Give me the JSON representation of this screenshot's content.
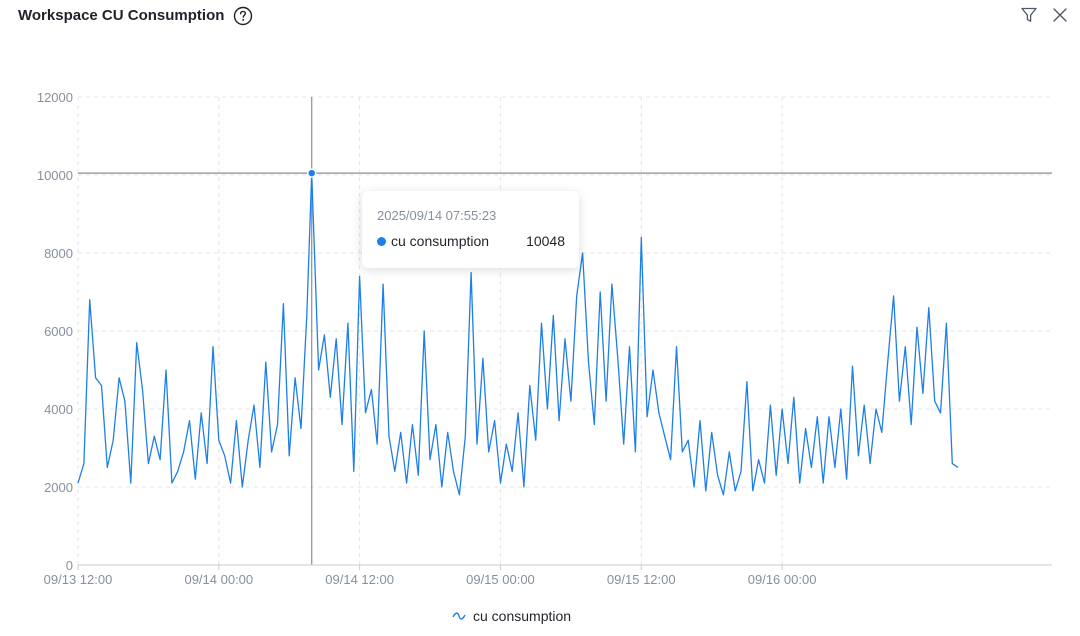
{
  "header": {
    "title": "Workspace CU Consumption",
    "help_icon": "help-circle-icon",
    "filter_icon": "filter-icon",
    "close_icon": "close-icon"
  },
  "tooltip": {
    "time": "2025/09/14 07:55:23",
    "series_name": "cu consumption",
    "value": "10048"
  },
  "legend": {
    "label": "cu consumption",
    "icon": "line-icon"
  },
  "colors": {
    "series": "#1e7fe8",
    "axis_text": "#86909c",
    "grid": "#e3e5e8",
    "crosshair": "#8a8f96"
  },
  "chart_data": {
    "type": "line",
    "title": "Workspace CU Consumption",
    "xlabel": "",
    "ylabel": "",
    "ylim": [
      0,
      12000
    ],
    "yticks": [
      "0",
      "2000",
      "4000",
      "6000",
      "8000",
      "10000",
      "12000"
    ],
    "xticks": [
      "09/13 12:00",
      "09/14 00:00",
      "09/14 12:00",
      "09/15 00:00",
      "09/15 12:00",
      "09/16 00:00"
    ],
    "grid": true,
    "legend_position": "bottom-center",
    "x_start": "2025-09-13 12:00",
    "x_end": "2025-09-16 23:00",
    "highlight": {
      "x": "2025-09-14 07:55",
      "y": 10048
    },
    "series": [
      {
        "name": "cu consumption",
        "points": [
          {
            "x": "2025-09-13 12:00",
            "y": 2100
          },
          {
            "x": "2025-09-13 12:30",
            "y": 2600
          },
          {
            "x": "2025-09-13 13:00",
            "y": 6800
          },
          {
            "x": "2025-09-13 13:30",
            "y": 4800
          },
          {
            "x": "2025-09-13 14:00",
            "y": 4600
          },
          {
            "x": "2025-09-13 14:30",
            "y": 2500
          },
          {
            "x": "2025-09-13 15:00",
            "y": 3200
          },
          {
            "x": "2025-09-13 15:30",
            "y": 4800
          },
          {
            "x": "2025-09-13 16:00",
            "y": 4200
          },
          {
            "x": "2025-09-13 16:30",
            "y": 2100
          },
          {
            "x": "2025-09-13 17:00",
            "y": 5700
          },
          {
            "x": "2025-09-13 17:30",
            "y": 4500
          },
          {
            "x": "2025-09-13 18:00",
            "y": 2600
          },
          {
            "x": "2025-09-13 18:30",
            "y": 3300
          },
          {
            "x": "2025-09-13 19:00",
            "y": 2700
          },
          {
            "x": "2025-09-13 19:30",
            "y": 5000
          },
          {
            "x": "2025-09-13 20:00",
            "y": 2100
          },
          {
            "x": "2025-09-13 20:30",
            "y": 2400
          },
          {
            "x": "2025-09-13 21:00",
            "y": 2900
          },
          {
            "x": "2025-09-13 21:30",
            "y": 3700
          },
          {
            "x": "2025-09-13 22:00",
            "y": 2200
          },
          {
            "x": "2025-09-13 22:30",
            "y": 3900
          },
          {
            "x": "2025-09-13 23:00",
            "y": 2600
          },
          {
            "x": "2025-09-13 23:30",
            "y": 5600
          },
          {
            "x": "2025-09-14 00:00",
            "y": 3200
          },
          {
            "x": "2025-09-14 00:30",
            "y": 2800
          },
          {
            "x": "2025-09-14 01:00",
            "y": 2100
          },
          {
            "x": "2025-09-14 01:30",
            "y": 3700
          },
          {
            "x": "2025-09-14 02:00",
            "y": 2000
          },
          {
            "x": "2025-09-14 02:30",
            "y": 3200
          },
          {
            "x": "2025-09-14 03:00",
            "y": 4100
          },
          {
            "x": "2025-09-14 03:30",
            "y": 2500
          },
          {
            "x": "2025-09-14 04:00",
            "y": 5200
          },
          {
            "x": "2025-09-14 04:30",
            "y": 2900
          },
          {
            "x": "2025-09-14 05:00",
            "y": 3600
          },
          {
            "x": "2025-09-14 05:30",
            "y": 6700
          },
          {
            "x": "2025-09-14 06:00",
            "y": 2800
          },
          {
            "x": "2025-09-14 06:30",
            "y": 4800
          },
          {
            "x": "2025-09-14 07:00",
            "y": 3500
          },
          {
            "x": "2025-09-14 07:30",
            "y": 6400
          },
          {
            "x": "2025-09-14 07:55",
            "y": 10048
          },
          {
            "x": "2025-09-14 08:30",
            "y": 5000
          },
          {
            "x": "2025-09-14 09:00",
            "y": 5900
          },
          {
            "x": "2025-09-14 09:30",
            "y": 4300
          },
          {
            "x": "2025-09-14 10:00",
            "y": 5800
          },
          {
            "x": "2025-09-14 10:30",
            "y": 3600
          },
          {
            "x": "2025-09-14 11:00",
            "y": 6200
          },
          {
            "x": "2025-09-14 11:30",
            "y": 2400
          },
          {
            "x": "2025-09-14 12:00",
            "y": 7400
          },
          {
            "x": "2025-09-14 12:30",
            "y": 3900
          },
          {
            "x": "2025-09-14 13:00",
            "y": 4500
          },
          {
            "x": "2025-09-14 13:30",
            "y": 3100
          },
          {
            "x": "2025-09-14 14:00",
            "y": 7200
          },
          {
            "x": "2025-09-14 14:30",
            "y": 3300
          },
          {
            "x": "2025-09-14 15:00",
            "y": 2400
          },
          {
            "x": "2025-09-14 15:30",
            "y": 3400
          },
          {
            "x": "2025-09-14 16:00",
            "y": 2100
          },
          {
            "x": "2025-09-14 16:30",
            "y": 3600
          },
          {
            "x": "2025-09-14 17:00",
            "y": 2300
          },
          {
            "x": "2025-09-14 17:30",
            "y": 6000
          },
          {
            "x": "2025-09-14 18:00",
            "y": 2700
          },
          {
            "x": "2025-09-14 18:30",
            "y": 3600
          },
          {
            "x": "2025-09-14 19:00",
            "y": 2000
          },
          {
            "x": "2025-09-14 19:30",
            "y": 3400
          },
          {
            "x": "2025-09-14 20:00",
            "y": 2400
          },
          {
            "x": "2025-09-14 20:30",
            "y": 1800
          },
          {
            "x": "2025-09-14 21:00",
            "y": 3300
          },
          {
            "x": "2025-09-14 21:30",
            "y": 7500
          },
          {
            "x": "2025-09-14 22:00",
            "y": 3100
          },
          {
            "x": "2025-09-14 22:30",
            "y": 5300
          },
          {
            "x": "2025-09-14 23:00",
            "y": 2900
          },
          {
            "x": "2025-09-14 23:30",
            "y": 3700
          },
          {
            "x": "2025-09-15 00:00",
            "y": 2100
          },
          {
            "x": "2025-09-15 00:30",
            "y": 3100
          },
          {
            "x": "2025-09-15 01:00",
            "y": 2400
          },
          {
            "x": "2025-09-15 01:30",
            "y": 3900
          },
          {
            "x": "2025-09-15 02:00",
            "y": 2000
          },
          {
            "x": "2025-09-15 02:30",
            "y": 4600
          },
          {
            "x": "2025-09-15 03:00",
            "y": 3200
          },
          {
            "x": "2025-09-15 03:30",
            "y": 6200
          },
          {
            "x": "2025-09-15 04:00",
            "y": 4000
          },
          {
            "x": "2025-09-15 04:30",
            "y": 6400
          },
          {
            "x": "2025-09-15 05:00",
            "y": 3700
          },
          {
            "x": "2025-09-15 05:30",
            "y": 5800
          },
          {
            "x": "2025-09-15 06:00",
            "y": 4200
          },
          {
            "x": "2025-09-15 06:30",
            "y": 6900
          },
          {
            "x": "2025-09-15 07:00",
            "y": 8000
          },
          {
            "x": "2025-09-15 07:30",
            "y": 5200
          },
          {
            "x": "2025-09-15 08:00",
            "y": 3600
          },
          {
            "x": "2025-09-15 08:30",
            "y": 7000
          },
          {
            "x": "2025-09-15 09:00",
            "y": 4200
          },
          {
            "x": "2025-09-15 09:30",
            "y": 7200
          },
          {
            "x": "2025-09-15 10:00",
            "y": 5300
          },
          {
            "x": "2025-09-15 10:30",
            "y": 3100
          },
          {
            "x": "2025-09-15 11:00",
            "y": 5600
          },
          {
            "x": "2025-09-15 11:30",
            "y": 2900
          },
          {
            "x": "2025-09-15 12:00",
            "y": 8400
          },
          {
            "x": "2025-09-15 12:30",
            "y": 3800
          },
          {
            "x": "2025-09-15 13:00",
            "y": 5000
          },
          {
            "x": "2025-09-15 13:30",
            "y": 3900
          },
          {
            "x": "2025-09-15 14:00",
            "y": 3300
          },
          {
            "x": "2025-09-15 14:30",
            "y": 2700
          },
          {
            "x": "2025-09-15 15:00",
            "y": 5600
          },
          {
            "x": "2025-09-15 15:30",
            "y": 2900
          },
          {
            "x": "2025-09-15 16:00",
            "y": 3200
          },
          {
            "x": "2025-09-15 16:30",
            "y": 2000
          },
          {
            "x": "2025-09-15 17:00",
            "y": 3700
          },
          {
            "x": "2025-09-15 17:30",
            "y": 1900
          },
          {
            "x": "2025-09-15 18:00",
            "y": 3400
          },
          {
            "x": "2025-09-15 18:30",
            "y": 2300
          },
          {
            "x": "2025-09-15 19:00",
            "y": 1800
          },
          {
            "x": "2025-09-15 19:30",
            "y": 2900
          },
          {
            "x": "2025-09-15 20:00",
            "y": 1900
          },
          {
            "x": "2025-09-15 20:30",
            "y": 2400
          },
          {
            "x": "2025-09-15 21:00",
            "y": 4700
          },
          {
            "x": "2025-09-15 21:30",
            "y": 1900
          },
          {
            "x": "2025-09-15 22:00",
            "y": 2700
          },
          {
            "x": "2025-09-15 22:30",
            "y": 2100
          },
          {
            "x": "2025-09-15 23:00",
            "y": 4100
          },
          {
            "x": "2025-09-15 23:30",
            "y": 2300
          },
          {
            "x": "2025-09-16 00:00",
            "y": 4000
          },
          {
            "x": "2025-09-16 00:30",
            "y": 2600
          },
          {
            "x": "2025-09-16 01:00",
            "y": 4300
          },
          {
            "x": "2025-09-16 01:30",
            "y": 2100
          },
          {
            "x": "2025-09-16 02:00",
            "y": 3500
          },
          {
            "x": "2025-09-16 02:30",
            "y": 2500
          },
          {
            "x": "2025-09-16 03:00",
            "y": 3800
          },
          {
            "x": "2025-09-16 03:30",
            "y": 2100
          },
          {
            "x": "2025-09-16 04:00",
            "y": 3800
          },
          {
            "x": "2025-09-16 04:30",
            "y": 2500
          },
          {
            "x": "2025-09-16 05:00",
            "y": 4000
          },
          {
            "x": "2025-09-16 05:30",
            "y": 2200
          },
          {
            "x": "2025-09-16 06:00",
            "y": 5100
          },
          {
            "x": "2025-09-16 06:30",
            "y": 2800
          },
          {
            "x": "2025-09-16 07:00",
            "y": 4100
          },
          {
            "x": "2025-09-16 07:30",
            "y": 2600
          },
          {
            "x": "2025-09-16 08:00",
            "y": 4000
          },
          {
            "x": "2025-09-16 08:30",
            "y": 3400
          },
          {
            "x": "2025-09-16 09:00",
            "y": 5200
          },
          {
            "x": "2025-09-16 09:30",
            "y": 6900
          },
          {
            "x": "2025-09-16 10:00",
            "y": 4200
          },
          {
            "x": "2025-09-16 10:30",
            "y": 5600
          },
          {
            "x": "2025-09-16 11:00",
            "y": 3600
          },
          {
            "x": "2025-09-16 11:30",
            "y": 6100
          },
          {
            "x": "2025-09-16 12:00",
            "y": 4400
          },
          {
            "x": "2025-09-16 12:30",
            "y": 6600
          },
          {
            "x": "2025-09-16 13:00",
            "y": 4200
          },
          {
            "x": "2025-09-16 13:30",
            "y": 3900
          },
          {
            "x": "2025-09-16 14:00",
            "y": 6200
          },
          {
            "x": "2025-09-16 14:30",
            "y": 2600
          },
          {
            "x": "2025-09-16 15:00",
            "y": 2500
          }
        ]
      }
    ]
  }
}
